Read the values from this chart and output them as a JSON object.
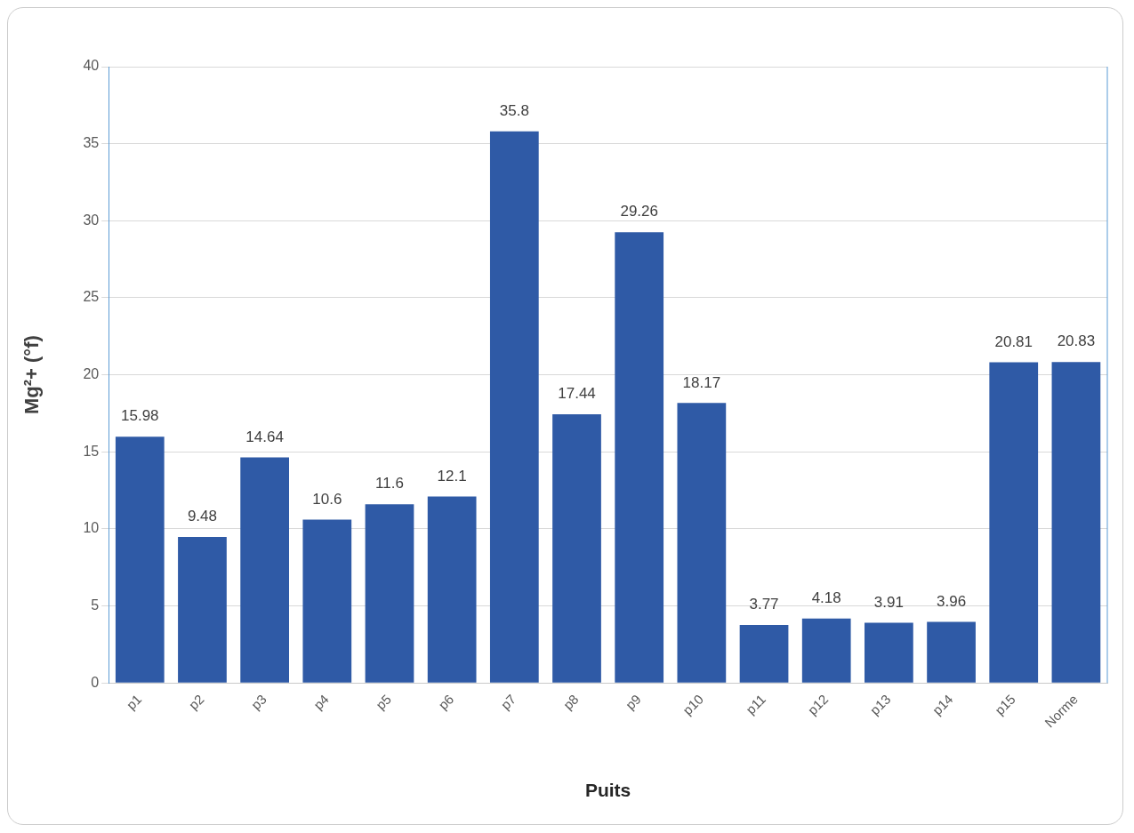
{
  "chart_data": {
    "type": "bar",
    "xlabel": "Puits",
    "ylabel": "Mg²+ (°f)",
    "categories": [
      "p1",
      "p2",
      "p3",
      "p4",
      "p5",
      "p6",
      "p7",
      "p8",
      "p9",
      "p10",
      "p11",
      "p12",
      "p13",
      "p14",
      "p15",
      "Norme"
    ],
    "values": [
      15.98,
      9.48,
      14.64,
      10.6,
      11.6,
      12.1,
      35.8,
      17.44,
      29.26,
      18.17,
      3.77,
      4.18,
      3.91,
      3.96,
      20.81,
      20.83
    ],
    "color": "#2f5aa6",
    "ylim": [
      0,
      40
    ],
    "yticks": [
      0,
      5,
      10,
      15,
      20,
      25,
      30,
      35,
      40
    ],
    "grid": "y",
    "data_labels": true,
    "legend": false
  }
}
